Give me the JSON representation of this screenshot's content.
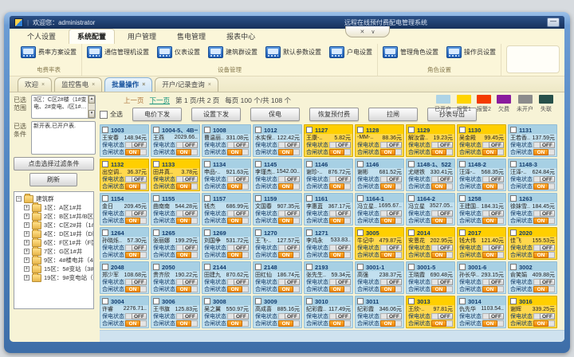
{
  "window": {
    "welcome": "欢迎您：administrator",
    "system_title": "远程在线预付费配电管理系统",
    "minimize_glyph": "—",
    "pill_close": "✕",
    "pill_down": "∨"
  },
  "menu": {
    "tabs": [
      {
        "label": "个人设置",
        "active": false
      },
      {
        "label": "系统配置",
        "active": true
      },
      {
        "label": "用户管理",
        "active": false
      },
      {
        "label": "售电管理",
        "active": false
      },
      {
        "label": "报表中心",
        "active": false
      }
    ]
  },
  "ribbon": {
    "groups": [
      {
        "label": "电费率表",
        "buttons": [
          "费率方案设置"
        ]
      },
      {
        "label": "设备管理",
        "buttons": [
          "通信管理机设置",
          "仪表设置",
          "建筑群设置",
          "默认参数设置",
          "户电设置"
        ]
      },
      {
        "label": "角色设置",
        "buttons": [
          "管理角色设置",
          "操作员设置"
        ]
      }
    ]
  },
  "doc_tabs": [
    {
      "label": "欢迎",
      "active": false
    },
    {
      "label": "监控售电",
      "active": false
    },
    {
      "label": "批量操作",
      "active": true
    },
    {
      "label": "开户/记录查询",
      "active": false
    }
  ],
  "sidebar": {
    "range_label": "已选范围",
    "range_text": "3区：C区2#楼（1#变电、2#变电、/区1#…",
    "cond_label": "已选条件",
    "cond_text": "新开表,已开户表.",
    "filter_button": "点击选择过滤条件",
    "refresh_button": "刷新",
    "tree_root": "建筑群",
    "tree_items": [
      "1区：A区1#井",
      "2区：B区1#井/B区1#…",
      "3区：C区2#井（1#变…",
      "4区：D区1#井（D区1…",
      "6区：F区1#井（F区1#…",
      "7区：G区1#井",
      "9区：4#楼电井（4#楼…",
      "15区：5#变站（3#变…",
      "19区：9#变电站（2#…"
    ]
  },
  "toolbar": {
    "select_all": "全选",
    "prev": "上一页",
    "next": "下一页",
    "page_info": "第 1 页/共 2 页",
    "per_page_info": "每页 100 个/共 108 个",
    "buttons": [
      "电价下发",
      "设置下发",
      "保电",
      "恢复预付费",
      "拉闸",
      "抄表导出"
    ]
  },
  "legend": [
    {
      "label": "已开户",
      "color": "#aed4e6"
    },
    {
      "label": "报警1",
      "color": "#ffd400"
    },
    {
      "label": "报警2",
      "color": "#f43b00"
    },
    {
      "label": "欠费",
      "color": "#8a1b9e"
    },
    {
      "label": "未开户",
      "color": "#8c8c8c"
    },
    {
      "label": "失联",
      "color": "#27504a"
    }
  ],
  "card_labels": {
    "power_protect": "保电状态",
    "switch_state": "合闸状态",
    "on": "ON",
    "off": "OFF"
  },
  "cards": [
    {
      "id": "1003",
      "name": "王安春",
      "bal": "148.94元",
      "st": "open"
    },
    {
      "id": "1004-5、4B一",
      "name": "王燕",
      "bal": "2029.66..",
      "st": "open"
    },
    {
      "id": "1008",
      "name": "曹温丽..",
      "bal": "331.08元",
      "st": "open"
    },
    {
      "id": "1012",
      "name": "水实保..",
      "bal": "122.42元",
      "st": "open"
    },
    {
      "id": "1127",
      "name": "王康-..",
      "bal": "5.82元",
      "st": "alarm"
    },
    {
      "id": "1128",
      "name": "-MM-..",
      "bal": "88.36元",
      "st": "alarm"
    },
    {
      "id": "1129",
      "name": "解汝雷..",
      "bal": "19.23元",
      "st": "alarm"
    },
    {
      "id": "1130",
      "name": "吴金殿",
      "bal": "99.45元",
      "st": "alarm"
    },
    {
      "id": "1131",
      "name": "王若香..",
      "bal": "137.59元",
      "st": "open"
    },
    {
      "id": "1132",
      "name": "出空调..",
      "bal": "36.37元",
      "st": "alarm"
    },
    {
      "id": "1133",
      "name": "田井真..",
      "bal": "3.78元",
      "st": "alarm"
    },
    {
      "id": "1134",
      "name": "申品-..",
      "bal": "921.63元",
      "st": "open"
    },
    {
      "id": "1145",
      "name": "李瑾杰..",
      "bal": "1542.00..",
      "st": "open"
    },
    {
      "id": "1146",
      "name": "谢珍-..",
      "bal": "876.72元",
      "st": "open"
    },
    {
      "id": "1146",
      "name": "谢彬",
      "bal": "681.52元",
      "st": "open"
    },
    {
      "id": "1148-1、522",
      "name": "尤继铁",
      "bal": "330.41元",
      "st": "open"
    },
    {
      "id": "1148-2",
      "name": "汪泽-..",
      "bal": "568.35元",
      "st": "open"
    },
    {
      "id": "1148-3",
      "name": "汪泽-..",
      "bal": "624.84元",
      "st": "open"
    },
    {
      "id": "1154",
      "name": "金日",
      "bal": "209.45元",
      "st": "open"
    },
    {
      "id": "1155",
      "name": "曲南南",
      "bal": "544.28元",
      "st": "open"
    },
    {
      "id": "1157",
      "name": "钱杰",
      "bal": "686.99元",
      "st": "open"
    },
    {
      "id": "1159",
      "name": "文国春",
      "bal": "907.35元",
      "st": "open"
    },
    {
      "id": "1161",
      "name": "李惠蓝",
      "bal": "367.17元",
      "st": "open"
    },
    {
      "id": "1164-1",
      "name": "冯立星..",
      "bal": "1695.67..",
      "st": "open"
    },
    {
      "id": "1164-2",
      "name": "冯立星",
      "bal": "3527.05..",
      "st": "open"
    },
    {
      "id": "1258",
      "name": "王建国..",
      "bal": "184.31元",
      "st": "open"
    },
    {
      "id": "1263",
      "name": "徐妹雪..",
      "bal": "184.45元",
      "st": "open"
    },
    {
      "id": "1264",
      "name": "孙晓烁..",
      "bal": "57.30元",
      "st": "open"
    },
    {
      "id": "1265",
      "name": "张丽娜",
      "bal": "199.29元",
      "st": "open"
    },
    {
      "id": "1269",
      "name": "刘国争",
      "bal": "531.72元",
      "st": "open"
    },
    {
      "id": "1270",
      "name": "王飞-..",
      "bal": "127.57元",
      "st": "open"
    },
    {
      "id": "1271",
      "name": "李鸿永",
      "bal": "533.83..",
      "st": "open"
    },
    {
      "id": "3005",
      "name": "牛记中",
      "bal": "479.87元",
      "st": "alarm"
    },
    {
      "id": "2014",
      "name": "安恩花",
      "bal": "202.95元",
      "st": "alarm"
    },
    {
      "id": "2017",
      "name": "钱大伟",
      "bal": "121.40元",
      "st": "alarm"
    },
    {
      "id": "2020",
      "name": "佳飞",
      "bal": "155.53元",
      "st": "alarm"
    },
    {
      "id": "2048",
      "name": "郑少军",
      "bal": "108.68元",
      "st": "open"
    },
    {
      "id": "2050",
      "name": "贵齐欣",
      "bal": "190.22元",
      "st": "open"
    },
    {
      "id": "2144",
      "name": "田建九",
      "bal": "870.62元",
      "st": "open"
    },
    {
      "id": "2148",
      "name": "田红仙",
      "bal": "186.74元",
      "st": "open"
    },
    {
      "id": "2193",
      "name": "张先生..",
      "bal": "59.34元",
      "st": "open"
    },
    {
      "id": "3001-1",
      "name": "高强",
      "bal": "238.37元",
      "st": "open"
    },
    {
      "id": "3001-5",
      "name": "王晓霞",
      "bal": "690.48元",
      "st": "open"
    },
    {
      "id": "3001-6",
      "name": "孙长华..",
      "bal": "293.15元",
      "st": "open"
    },
    {
      "id": "3002",
      "name": "俞笑娟",
      "bal": "409.88元",
      "st": "open"
    },
    {
      "id": "3004",
      "name": "许睿",
      "bal": "2276.71..",
      "st": "open"
    },
    {
      "id": "3006",
      "name": "王书旗",
      "bal": "125.83元",
      "st": "open"
    },
    {
      "id": "3008",
      "name": "吴之翼",
      "bal": "550.97元",
      "st": "open"
    },
    {
      "id": "3009",
      "name": "高成喜",
      "bal": "885.16元",
      "st": "open"
    },
    {
      "id": "3010",
      "name": "纪彩霞..",
      "bal": "117.49元",
      "st": "open"
    },
    {
      "id": "3011",
      "name": "纪彩霞",
      "bal": "346.06元",
      "st": "open"
    },
    {
      "id": "3013",
      "name": "王欣-..",
      "bal": "97.81元",
      "st": "alarm"
    },
    {
      "id": "3014",
      "name": "仇先华",
      "bal": "1103.54..",
      "st": "open"
    },
    {
      "id": "3016",
      "name": "谢辉",
      "bal": "339.25元",
      "st": "alarm"
    }
  ]
}
